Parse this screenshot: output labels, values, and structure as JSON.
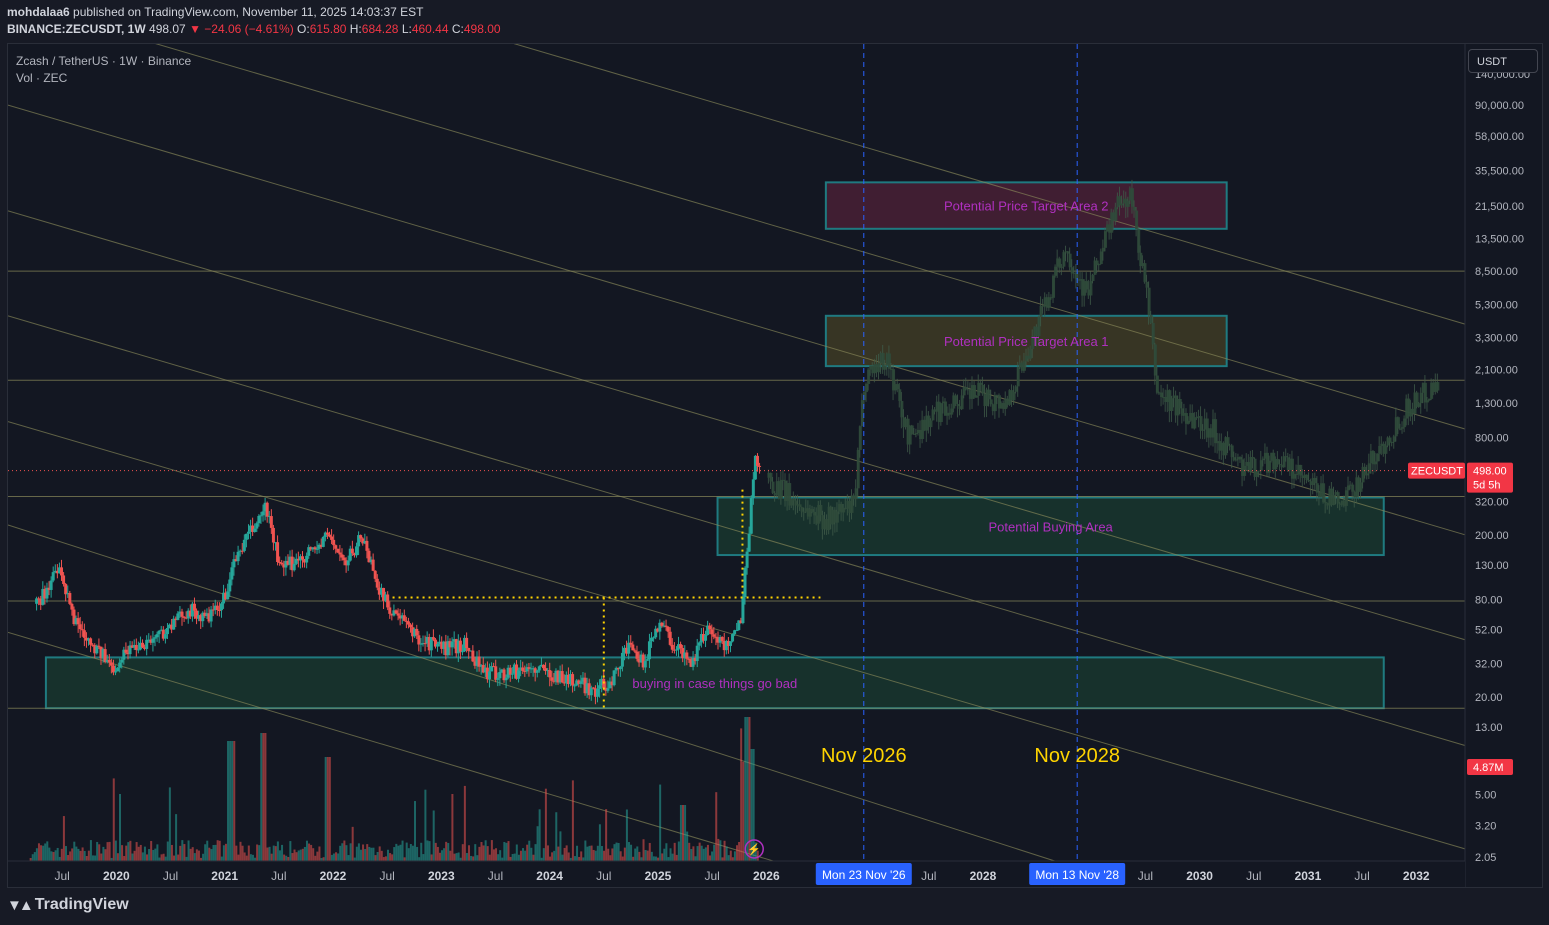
{
  "header": {
    "line1_user": "mohdalaa6",
    "line1_rest": " published on TradingView.com, November 11, 2025 14:03:37 EST",
    "symbol": "BINANCE:ZECUSDT, 1W",
    "last": "498.07",
    "change": "−24.06 (−4.61%)",
    "o_label": "O:",
    "o_val": "615.80",
    "h_label": "H:",
    "h_val": "684.28",
    "l_label": "L:",
    "l_val": "460.44",
    "c_label": "C:",
    "c_val": "498.00"
  },
  "legend": {
    "title": "Zcash / TetherUS · 1W · Binance",
    "vol": "Vol · ZEC"
  },
  "currency_button": "USDT",
  "footer": {
    "brand": "TradingView"
  },
  "colors": {
    "background": "#131722",
    "up": "#26a69a",
    "down": "#ef5350",
    "channel": "#8a8a5a",
    "box_border": "#1f7a80",
    "box_label": "#b030c0",
    "annotation": "#ffd400",
    "date_highlight": "#2962ff"
  },
  "chart_data": {
    "type": "candlestick",
    "log_scale": true,
    "grid": false,
    "price_axis_ticks": [
      "140,000.00",
      "90,000.00",
      "58,000.00",
      "35,500.00",
      "21,500.00",
      "13,500.00",
      "8,500.00",
      "5,300.00",
      "3,300.00",
      "2,100.00",
      "1,300.00",
      "800.00",
      "320.00",
      "200.00",
      "130.00",
      "80.00",
      "52.00",
      "32.00",
      "20.00",
      "13.00",
      "5.00",
      "3.20",
      "2.05"
    ],
    "price_tick_values": [
      140000,
      90000,
      58000,
      35500,
      21500,
      13500,
      8500,
      5300,
      3300,
      2100,
      1300,
      800,
      320,
      200,
      130,
      80,
      52,
      32,
      20,
      13,
      5,
      3.2,
      2.05
    ],
    "time_axis_ticks": [
      {
        "label": "Jul",
        "t": 2019.5
      },
      {
        "label": "2020",
        "t": 2020.0
      },
      {
        "label": "Jul",
        "t": 2020.5
      },
      {
        "label": "2021",
        "t": 2021.0
      },
      {
        "label": "Jul",
        "t": 2021.5
      },
      {
        "label": "2022",
        "t": 2022.0
      },
      {
        "label": "Jul",
        "t": 2022.5
      },
      {
        "label": "2023",
        "t": 2023.0
      },
      {
        "label": "Jul",
        "t": 2023.5
      },
      {
        "label": "2024",
        "t": 2024.0
      },
      {
        "label": "Jul",
        "t": 2024.5
      },
      {
        "label": "2025",
        "t": 2025.0
      },
      {
        "label": "Jul",
        "t": 2025.5
      },
      {
        "label": "2026",
        "t": 2026.0
      },
      {
        "label": "Jul",
        "t": 2027.5
      },
      {
        "label": "2028",
        "t": 2028.0
      },
      {
        "label": "Jul",
        "t": 2029.5
      },
      {
        "label": "2030",
        "t": 2030.0
      },
      {
        "label": "Jul",
        "t": 2030.5
      },
      {
        "label": "2031",
        "t": 2031.0
      },
      {
        "label": "Jul",
        "t": 2031.5
      },
      {
        "label": "2032",
        "t": 2032.0
      }
    ],
    "time_range": [
      2019.0,
      2032.45
    ],
    "last_price": {
      "label": "ZECUSDT",
      "value": "498.00",
      "price": 498,
      "countdown": "5d 5h"
    },
    "volume_label": {
      "value": "4.87M"
    },
    "date_markers": [
      {
        "label": "Mon 23 Nov '26",
        "t": 2026.9
      },
      {
        "label": "Mon 13 Nov '28",
        "t": 2028.87
      }
    ],
    "annotations": [
      {
        "text": "Nov 2026",
        "t": 2026.9
      },
      {
        "text": "Nov 2028",
        "t": 2028.87
      }
    ],
    "horizontal_levels": [
      8500,
      1800,
      345,
      78,
      17
    ],
    "zones": [
      {
        "label": "Potential Price Target Area 2",
        "t0": 2026.55,
        "t1": 2030.25,
        "p_high": 30000,
        "p_low": 15500,
        "fill": "rgba(120,40,70,0.45)"
      },
      {
        "label": "Potential Price Target Area 1",
        "t0": 2026.55,
        "t1": 2030.25,
        "p_high": 4500,
        "p_low": 2200,
        "fill": "rgba(100,90,40,0.45)"
      },
      {
        "label": "Potential Buying Area",
        "t0": 2025.55,
        "t1": 2031.7,
        "p_high": 340,
        "p_low": 150,
        "fill": "rgba(30,90,60,0.40)"
      },
      {
        "label": "buying in case things go bad",
        "t0": 2019.35,
        "t1": 2031.7,
        "p_high": 35,
        "p_low": 17,
        "fill": "rgba(30,90,60,0.40)"
      }
    ],
    "yellow_dotted": {
      "h_price": 82,
      "h_t0": 2022.55,
      "h_t1": 2026.5,
      "v1_t": 2024.5,
      "v1_p0": 17,
      "v1_p1": 82,
      "v2_t": 2025.78,
      "v2_p0": 82,
      "v2_p1": 380
    },
    "channel_lines": [
      {
        "t0": 2019.0,
        "p0": 1800000,
        "t1": 2032.45,
        "p1": 4000
      },
      {
        "t0": 2019.0,
        "p0": 400000,
        "t1": 2032.45,
        "p1": 900
      },
      {
        "t0": 2019.0,
        "p0": 90000,
        "t1": 2032.45,
        "p1": 200
      },
      {
        "t0": 2019.0,
        "p0": 20000,
        "t1": 2032.45,
        "p1": 45
      },
      {
        "t0": 2019.0,
        "p0": 4500,
        "t1": 2032.45,
        "p1": 10
      },
      {
        "t0": 2019.0,
        "p0": 1000,
        "t1": 2032.45,
        "p1": 2.3
      },
      {
        "t0": 2019.0,
        "p0": 230,
        "t1": 2030.0,
        "p1": 1
      },
      {
        "t0": 2019.0,
        "p0": 50,
        "t1": 2027.5,
        "p1": 1
      }
    ],
    "price_anchors": [
      [
        2019.25,
        75
      ],
      [
        2019.45,
        120
      ],
      [
        2019.6,
        60
      ],
      [
        2019.8,
        40
      ],
      [
        2019.95,
        30
      ],
      [
        2020.1,
        40
      ],
      [
        2020.3,
        45
      ],
      [
        2020.5,
        55
      ],
      [
        2020.65,
        70
      ],
      [
        2020.8,
        60
      ],
      [
        2020.95,
        70
      ],
      [
        2021.1,
        150
      ],
      [
        2021.3,
        250
      ],
      [
        2021.37,
        300
      ],
      [
        2021.5,
        120
      ],
      [
        2021.65,
        140
      ],
      [
        2021.85,
        170
      ],
      [
        2021.95,
        200
      ],
      [
        2022.1,
        130
      ],
      [
        2022.25,
        200
      ],
      [
        2022.45,
        80
      ],
      [
        2022.6,
        60
      ],
      [
        2022.8,
        45
      ],
      [
        2023.0,
        40
      ],
      [
        2023.2,
        42
      ],
      [
        2023.4,
        28
      ],
      [
        2023.6,
        28
      ],
      [
        2023.8,
        30
      ],
      [
        2024.0,
        28
      ],
      [
        2024.2,
        25
      ],
      [
        2024.4,
        22
      ],
      [
        2024.55,
        25
      ],
      [
        2024.7,
        40
      ],
      [
        2024.85,
        32
      ],
      [
        2025.0,
        60
      ],
      [
        2025.15,
        40
      ],
      [
        2025.3,
        33
      ],
      [
        2025.45,
        55
      ],
      [
        2025.6,
        40
      ],
      [
        2025.75,
        60
      ],
      [
        2025.82,
        190
      ],
      [
        2025.87,
        520
      ],
      [
        2025.9,
        600
      ],
      [
        2025.93,
        498
      ]
    ],
    "volume_spikes": [
      [
        2025.78,
        0.62
      ],
      [
        2025.82,
        0.9
      ],
      [
        2025.85,
        0.7
      ],
      [
        2021.05,
        0.75
      ],
      [
        2021.35,
        0.8
      ],
      [
        2021.95,
        0.65
      ],
      [
        2025.23,
        0.35
      ]
    ],
    "projection_anchors": [
      [
        2026.0,
        450
      ],
      [
        2026.3,
        300
      ],
      [
        2026.55,
        250
      ],
      [
        2026.8,
        300
      ],
      [
        2026.9,
        2000
      ],
      [
        2027.1,
        2500
      ],
      [
        2027.3,
        800
      ],
      [
        2027.6,
        1200
      ],
      [
        2027.9,
        1500
      ],
      [
        2028.2,
        1300
      ],
      [
        2028.5,
        4000
      ],
      [
        2028.75,
        12000
      ],
      [
        2028.95,
        6000
      ],
      [
        2029.2,
        20000
      ],
      [
        2029.35,
        25000
      ],
      [
        2029.5,
        6000
      ],
      [
        2029.6,
        1500
      ],
      [
        2029.8,
        1200
      ],
      [
        2030.1,
        900
      ],
      [
        2030.4,
        500
      ],
      [
        2030.7,
        600
      ],
      [
        2031.0,
        400
      ],
      [
        2031.3,
        300
      ],
      [
        2031.6,
        600
      ],
      [
        2031.9,
        1200
      ],
      [
        2032.2,
        1800
      ]
    ]
  }
}
